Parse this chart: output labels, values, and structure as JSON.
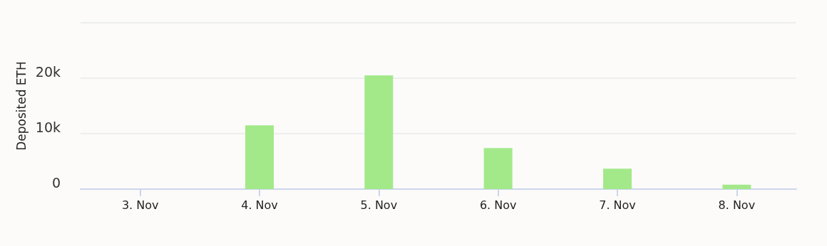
{
  "chart_data": {
    "type": "bar",
    "ylabel": "Deposited ETH",
    "categories": [
      "3. Nov",
      "4. Nov",
      "5. Nov",
      "6. Nov",
      "7. Nov",
      "8. Nov"
    ],
    "values": [
      0,
      11500,
      20500,
      7400,
      3700,
      800
    ],
    "color": "#a3e98a",
    "ylim": [
      0,
      30000
    ],
    "yticks": [
      {
        "value": 0,
        "label": "0"
      },
      {
        "value": 10000,
        "label": "10k"
      },
      {
        "value": 20000,
        "label": "20k"
      },
      {
        "value": 30000,
        "label": null
      }
    ],
    "grid": "y"
  }
}
